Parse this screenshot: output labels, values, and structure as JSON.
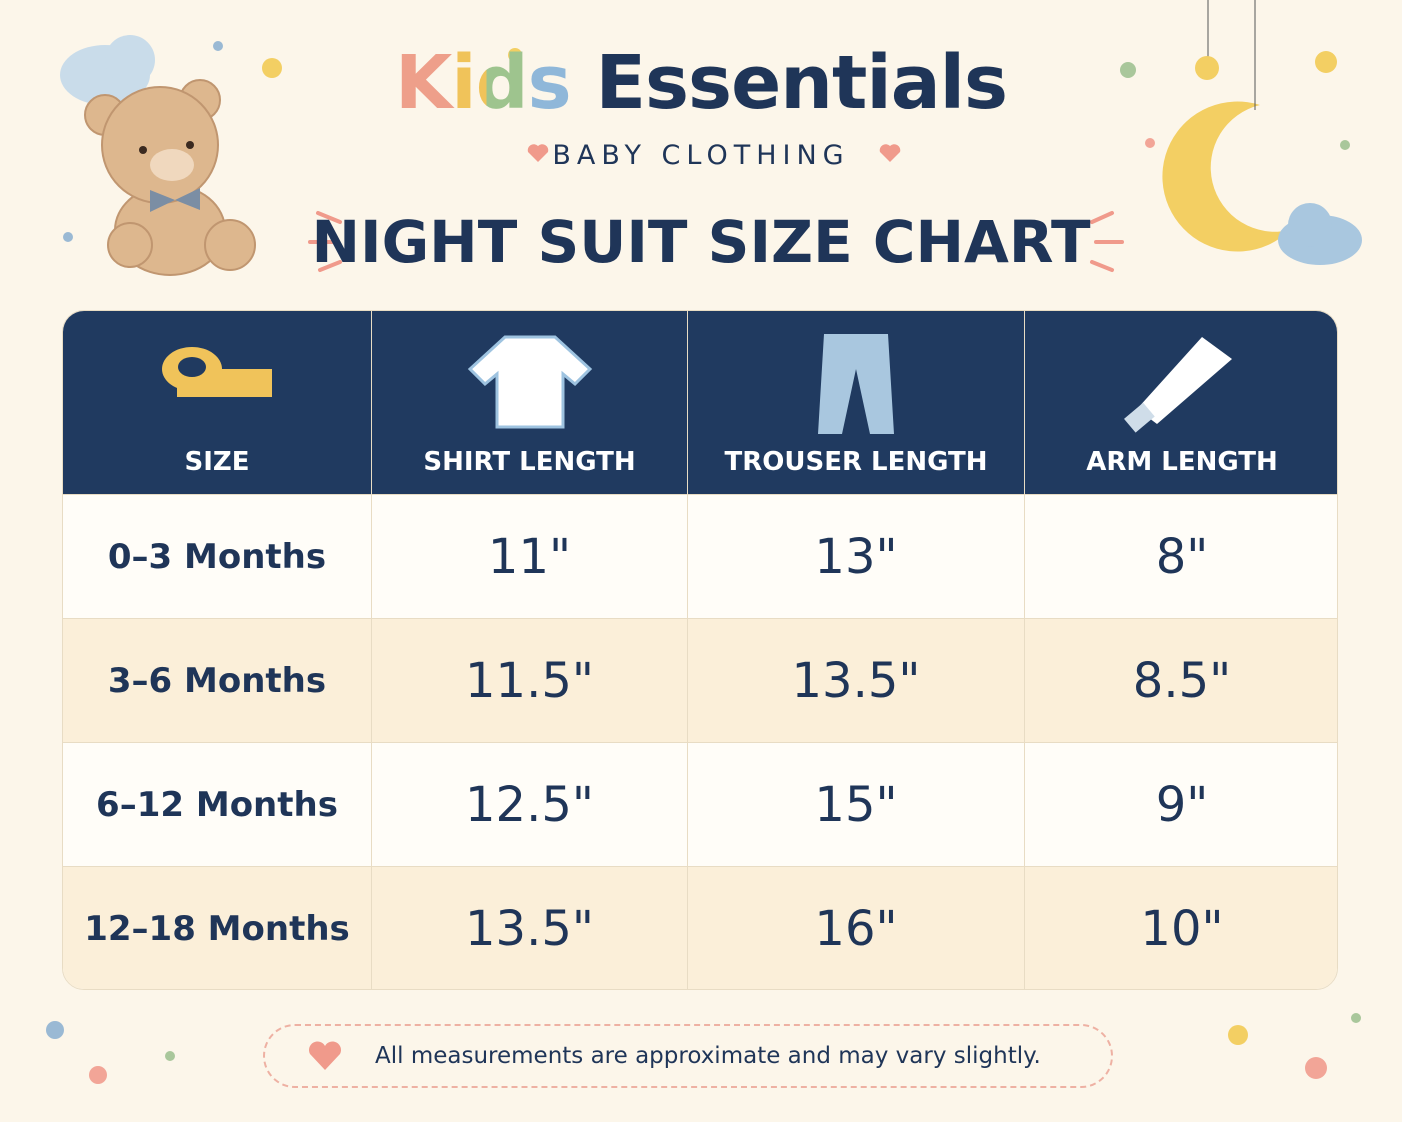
{
  "header": {
    "brand_first": "Kids",
    "brand_second": "Essentials",
    "subtitle": "BABY CLOTHING",
    "title": "NIGHT SUIT SIZE CHART"
  },
  "table": {
    "columns": [
      "SIZE",
      "SHIRT LENGTH",
      "TROUSER LENGTH",
      "ARM LENGTH"
    ],
    "rows": [
      [
        "0–3 Months",
        "11\"",
        "13\"",
        "8\""
      ],
      [
        "3–6 Months",
        "11.5\"",
        "13.5\"",
        "8.5\""
      ],
      [
        "6–12 Months",
        "12.5\"",
        "15\"",
        "9\""
      ],
      [
        "12–18 Months",
        "13.5\"",
        "16\"",
        "10\""
      ]
    ]
  },
  "footer": {
    "note": "All measurements are approximate and may vary slightly."
  }
}
